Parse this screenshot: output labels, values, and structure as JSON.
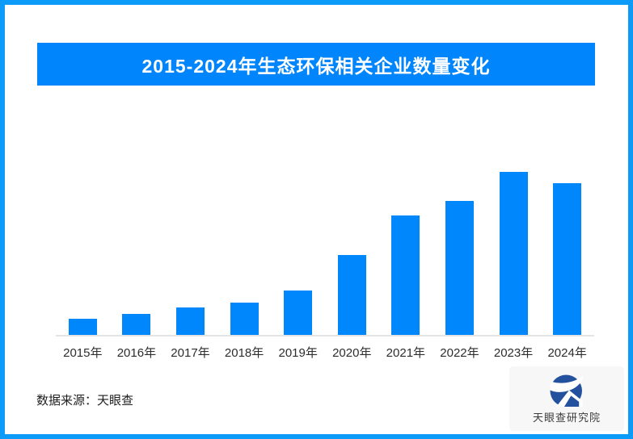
{
  "frame": {
    "border_color": "#0d9bf9",
    "background_color": "#ffffff"
  },
  "header": {
    "title": "2015-2024年生态环保相关企业数量变化",
    "bg_color": "#0185fc",
    "text_color": "#ffffff"
  },
  "chart_data": {
    "type": "bar",
    "title": "2015-2024年生态环保相关企业数量变化",
    "categories": [
      "2015年",
      "2016年",
      "2017年",
      "2018年",
      "2019年",
      "2020年",
      "2021年",
      "2022年",
      "2023年",
      "2024年"
    ],
    "values": [
      10,
      13,
      17,
      20,
      27,
      49,
      73,
      82,
      100,
      93
    ],
    "values_note": "图中未标注数值轴，数值为按柱高估算的相对值（2023年=100）",
    "xlabel": "",
    "ylabel": "",
    "ylim": [
      0,
      137
    ],
    "grid": false,
    "legend": "none",
    "bar_color": "#0087fb",
    "axis_line_color": "#e4e4e4",
    "label_color": "#2d2d2d"
  },
  "footer": {
    "source_text": "数据来源：天眼查",
    "logo": {
      "text": "天眼查研究院",
      "icon": "tianyancha-eye-logo",
      "icon_color": "#24519e",
      "card_bg": "#f7f7f7"
    }
  }
}
